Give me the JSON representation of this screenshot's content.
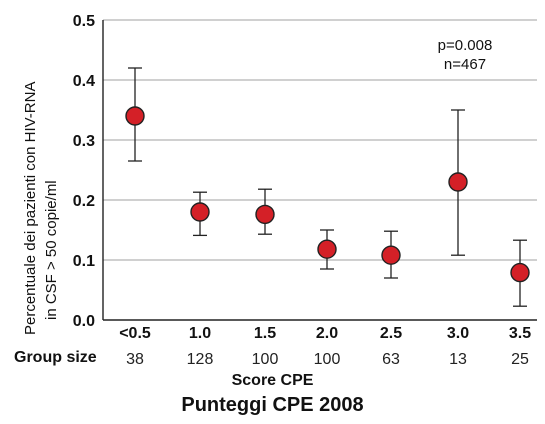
{
  "chart_data": {
    "type": "scatter",
    "ylabel_line1": "Percentuale dei pazienti con HIV-RNA",
    "ylabel_line2": "in CSF > 50 copie/ml",
    "xlabel": "Score CPE",
    "title": "Punteggi CPE 2008",
    "annotation": [
      "p=0.008",
      "n=467"
    ],
    "ylim": [
      0,
      0.5
    ],
    "yticks": [
      "0.0",
      "0.1",
      "0.2",
      "0.3",
      "0.4",
      "0.5"
    ],
    "grid": true,
    "categories": [
      "<0.5",
      "1.0",
      "1.5",
      "2.0",
      "2.5",
      "3.0",
      "3.5"
    ],
    "values": [
      0.34,
      0.18,
      0.176,
      0.118,
      0.108,
      0.23,
      0.079
    ],
    "ci_low": [
      0.265,
      0.141,
      0.143,
      0.085,
      0.07,
      0.108,
      0.023
    ],
    "ci_high": [
      0.42,
      0.213,
      0.218,
      0.15,
      0.148,
      0.35,
      0.133
    ],
    "group_size_label": "Group size",
    "group_sizes": [
      "38",
      "128",
      "100",
      "100",
      "63",
      "13",
      "25"
    ],
    "point_color": "#d42027"
  }
}
